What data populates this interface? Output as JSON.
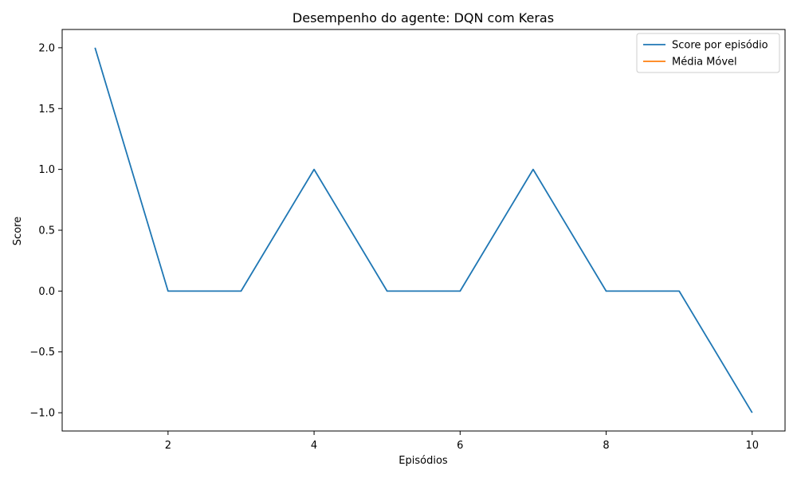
{
  "chart_data": {
    "type": "line",
    "title": "Desempenho do agente: DQN com Keras",
    "xlabel": "Episódios",
    "ylabel": "Score",
    "xlim": [
      0.55,
      10.45
    ],
    "ylim": [
      -1.15,
      2.15
    ],
    "xticks": [
      2,
      4,
      6,
      8,
      10
    ],
    "xtick_labels": [
      "2",
      "4",
      "6",
      "8",
      "10"
    ],
    "yticks": [
      -1.0,
      -0.5,
      0.0,
      0.5,
      1.0,
      1.5,
      2.0
    ],
    "ytick_labels": [
      "−1.0",
      "−0.5",
      "0.0",
      "0.5",
      "1.0",
      "1.5",
      "2.0"
    ],
    "grid": false,
    "legend_position": "top-right",
    "series": [
      {
        "name": "Score por episódio",
        "color": "#1f77b4",
        "x": [
          1,
          2,
          3,
          4,
          5,
          6,
          7,
          8,
          9,
          10
        ],
        "y": [
          2,
          0,
          0,
          1,
          0,
          0,
          1,
          0,
          0,
          -1
        ]
      },
      {
        "name": "Média Móvel",
        "color": "#ff7f0e",
        "x": [],
        "y": []
      }
    ]
  }
}
